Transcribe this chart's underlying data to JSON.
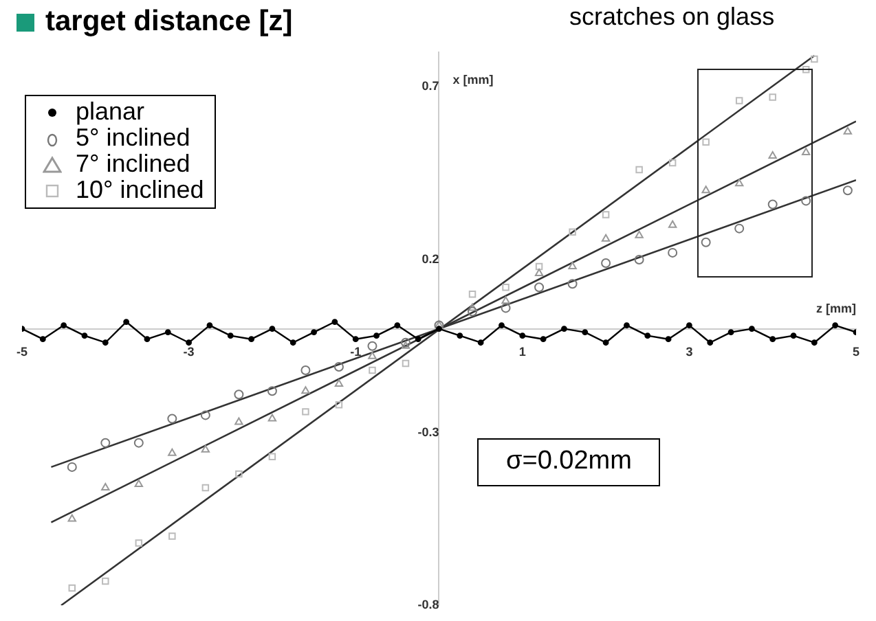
{
  "chart_data": {
    "type": "scatter",
    "title": "target distance [z]",
    "xlabel": "z [mm]",
    "ylabel": "x [mm]",
    "xlim": [
      -5,
      5
    ],
    "ylim": [
      -0.8,
      0.8
    ],
    "xticks": [
      -5,
      -3,
      -1,
      1,
      3,
      5
    ],
    "yticks": [
      0.7,
      0.2,
      -0.3,
      -0.8
    ],
    "grid": false,
    "legend": "top left",
    "annotations": [
      "scratches on glass",
      "σ=0.02mm"
    ],
    "series": [
      {
        "name": "planar",
        "type": "line",
        "marker": "circle",
        "color": "#000000",
        "x": [
          -5,
          -4.75,
          -4.5,
          -4.25,
          -4,
          -3.75,
          -3.5,
          -3.25,
          -3,
          -2.75,
          -2.5,
          -2.25,
          -2,
          -1.75,
          -1.5,
          -1.25,
          -1,
          -0.75,
          -0.5,
          -0.25,
          0,
          0.25,
          0.5,
          0.75,
          1,
          1.25,
          1.5,
          1.75,
          2,
          2.25,
          2.5,
          2.75,
          3,
          3.25,
          3.5,
          3.75,
          4,
          4.25,
          4.5,
          4.75,
          5
        ],
        "values": [
          0.0,
          -0.03,
          0.01,
          -0.02,
          -0.04,
          0.02,
          -0.03,
          -0.01,
          -0.04,
          0.01,
          -0.02,
          -0.03,
          0.0,
          -0.04,
          -0.01,
          0.02,
          -0.03,
          -0.02,
          0.01,
          -0.03,
          0.0,
          -0.02,
          -0.04,
          0.01,
          -0.02,
          -0.03,
          0.0,
          -0.01,
          -0.04,
          0.01,
          -0.02,
          -0.03,
          0.01,
          -0.04,
          -0.01,
          0.0,
          -0.03,
          -0.02,
          -0.04,
          0.01,
          -0.01
        ]
      },
      {
        "name": "5° inclined",
        "marker": "circle",
        "color": "#777777",
        "x": [
          -4.4,
          -4.0,
          -3.6,
          -3.2,
          -2.8,
          -2.4,
          -2.0,
          -1.6,
          -1.2,
          -0.8,
          -0.4,
          0,
          0.4,
          0.8,
          1.2,
          1.6,
          2.0,
          2.4,
          2.8,
          3.2,
          3.6,
          4.0,
          4.4,
          4.9
        ],
        "values": [
          -0.4,
          -0.33,
          -0.33,
          -0.26,
          -0.25,
          -0.19,
          -0.18,
          -0.12,
          -0.11,
          -0.05,
          -0.04,
          0.01,
          0.05,
          0.06,
          0.12,
          0.13,
          0.19,
          0.2,
          0.22,
          0.25,
          0.29,
          0.36,
          0.37,
          0.4
        ]
      },
      {
        "name": "7° inclined",
        "marker": "triangle",
        "color": "#999999",
        "x": [
          -4.4,
          -4.0,
          -3.6,
          -3.2,
          -2.8,
          -2.4,
          -2.0,
          -1.6,
          -1.2,
          -0.8,
          -0.4,
          0,
          0.4,
          0.8,
          1.2,
          1.6,
          2.0,
          2.4,
          2.8,
          3.2,
          3.6,
          4.0,
          4.4,
          4.9
        ],
        "values": [
          -0.55,
          -0.46,
          -0.45,
          -0.36,
          -0.35,
          -0.27,
          -0.26,
          -0.18,
          -0.16,
          -0.08,
          -0.05,
          0.01,
          0.06,
          0.08,
          0.16,
          0.18,
          0.26,
          0.27,
          0.3,
          0.4,
          0.42,
          0.5,
          0.51,
          0.57
        ]
      },
      {
        "name": "10° inclined",
        "marker": "square",
        "color": "#bbbbbb",
        "x": [
          -4.4,
          -4.0,
          -3.6,
          -3.2,
          -2.8,
          -2.4,
          -2.0,
          -1.6,
          -1.2,
          -0.8,
          -0.4,
          0,
          0.4,
          0.8,
          1.2,
          1.6,
          2.0,
          2.4,
          2.8,
          3.2,
          3.6,
          4.0,
          4.4,
          4.5
        ],
        "values": [
          -0.75,
          -0.73,
          -0.62,
          -0.6,
          -0.46,
          -0.42,
          -0.37,
          -0.24,
          -0.22,
          -0.12,
          -0.1,
          null,
          0.1,
          0.12,
          0.18,
          0.28,
          0.33,
          0.46,
          0.48,
          0.54,
          0.66,
          0.67,
          0.75,
          0.78
        ]
      },
      {
        "type": "line",
        "marker": "none",
        "color": "#333333",
        "x": [
          -4.53,
          4.5
        ],
        "values": [
          -0.8,
          0.79
        ]
      },
      {
        "type": "line",
        "marker": "none",
        "color": "#333333",
        "x": [
          -4.65,
          5
        ],
        "values": [
          -0.56,
          0.6
        ]
      },
      {
        "type": "line",
        "marker": "none",
        "color": "#333333",
        "x": [
          -4.65,
          5
        ],
        "values": [
          -0.4,
          0.43
        ]
      }
    ]
  }
}
